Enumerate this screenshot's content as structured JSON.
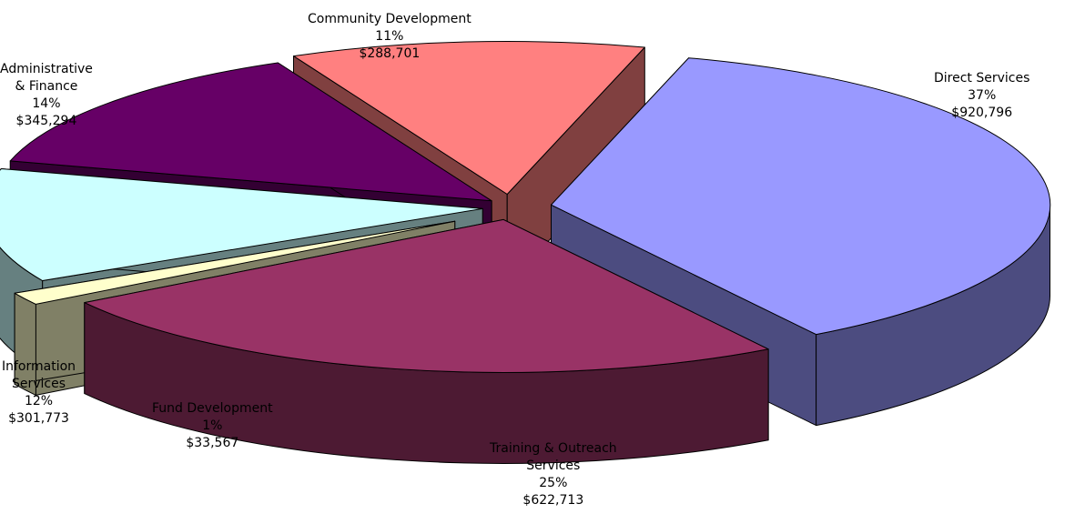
{
  "chart_data": {
    "type": "pie",
    "style": "3d-exploded",
    "legend": "none",
    "slices": [
      {
        "name": "Direct Services",
        "name_lines": [
          "Direct Services"
        ],
        "percent": "37%",
        "value": 920796,
        "amount": "$920,796",
        "top_color": "#9999FF",
        "side_color": "#4C4C80"
      },
      {
        "name": "Training & Outreach Services",
        "name_lines": [
          "Training & Outreach",
          "Services"
        ],
        "percent": "25%",
        "value": 622713,
        "amount": "$622,713",
        "top_color": "#993366",
        "side_color": "#4D1A33"
      },
      {
        "name": "Fund Development",
        "name_lines": [
          "Fund Development"
        ],
        "percent": "1%",
        "value": 33567,
        "amount": "$33,567",
        "top_color": "#FFFFCC",
        "side_color": "#808066"
      },
      {
        "name": "Information Services",
        "name_lines": [
          "Information",
          "Services"
        ],
        "percent": "12%",
        "value": 301773,
        "amount": "$301,773",
        "top_color": "#CCFFFF",
        "side_color": "#668080"
      },
      {
        "name": "Administrative & Finance",
        "name_lines": [
          "Administrative",
          "& Finance"
        ],
        "percent": "14%",
        "value": 345294,
        "amount": "$345,294",
        "top_color": "#660066",
        "side_color": "#330033"
      },
      {
        "name": "Community Development",
        "name_lines": [
          "Community Development"
        ],
        "percent": "11%",
        "value": 288701,
        "amount": "$288,701",
        "top_color": "#FF8080",
        "side_color": "#804040"
      }
    ]
  }
}
